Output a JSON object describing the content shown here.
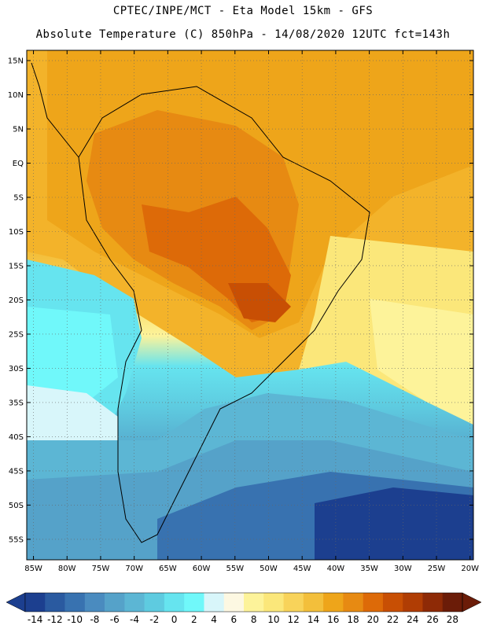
{
  "header": {
    "line1": "CPTEC/INPE/MCT  -   Eta Model 15km  -  GFS",
    "line2": "Absolute Temperature (C) 850hPa - 14/08/2020 12UTC fct=143h"
  },
  "map": {
    "lat_labels": [
      "15N",
      "10N",
      "5N",
      "EQ",
      "5S",
      "10S",
      "15S",
      "20S",
      "25S",
      "30S",
      "35S",
      "40S",
      "45S",
      "50S",
      "55S"
    ],
    "lat_values": [
      15,
      10,
      5,
      0,
      -5,
      -10,
      -15,
      -20,
      -25,
      -30,
      -35,
      -40,
      -45,
      -50,
      -55
    ],
    "lon_labels": [
      "85W",
      "80W",
      "75W",
      "70W",
      "65W",
      "60W",
      "55W",
      "50W",
      "45W",
      "40W",
      "35W",
      "30W",
      "25W",
      "20W"
    ],
    "lon_values": [
      -85,
      -80,
      -75,
      -70,
      -65,
      -60,
      -55,
      -50,
      -45,
      -40,
      -35,
      -30,
      -25,
      -20
    ],
    "extent": {
      "lon_min": -86,
      "lon_max": -19.5,
      "lat_min": -58,
      "lat_max": 16.5
    },
    "gridlines": "dotted"
  },
  "colorbar": {
    "labels": [
      "-14",
      "-12",
      "-10",
      "-8",
      "-6",
      "-4",
      "-2",
      "0",
      "2",
      "4",
      "6",
      "8",
      "10",
      "12",
      "14",
      "16",
      "18",
      "20",
      "22",
      "24",
      "26",
      "28"
    ],
    "colors": [
      "#1c3f8f",
      "#2a5aa0",
      "#3872b0",
      "#4a8bbf",
      "#55a2c9",
      "#5cb6d4",
      "#5ecbe0",
      "#66e4ef",
      "#70f8fa",
      "#d8f6fa",
      "#fdf8e2",
      "#fdf39a",
      "#fbe77a",
      "#f8d35a",
      "#f3bf3b",
      "#eea51a",
      "#e78a12",
      "#dd6a08",
      "#c84f04",
      "#b03d04",
      "#8e2a06",
      "#6b1c08"
    ]
  }
}
